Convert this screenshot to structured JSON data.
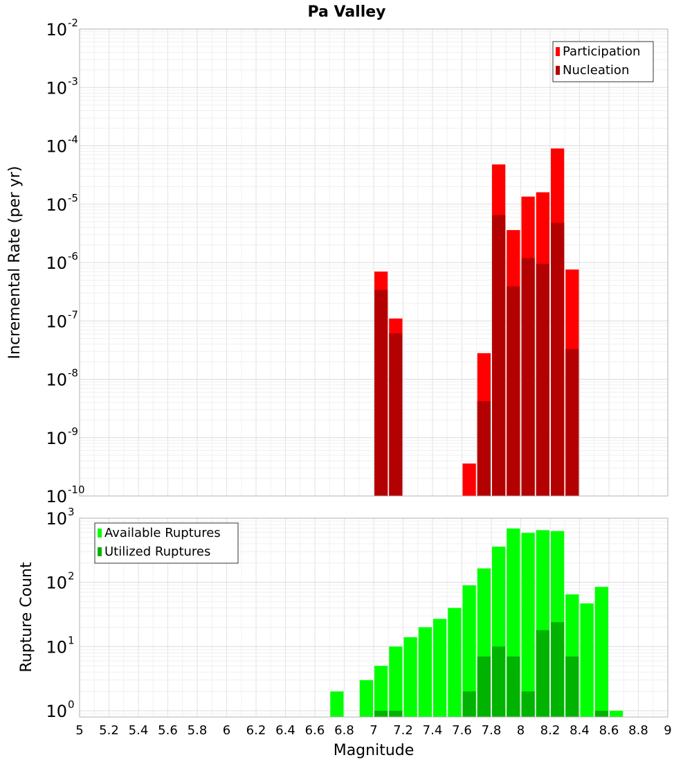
{
  "figure": {
    "title": "Pa Valley",
    "xlabel": "Magnitude",
    "xlim": [
      5,
      9
    ],
    "xticks": [
      5,
      5.2,
      5.4,
      5.6,
      5.8,
      6,
      6.2,
      6.4,
      6.6,
      6.8,
      7,
      7.2,
      7.4,
      7.6,
      7.8,
      8,
      8.2,
      8.4,
      8.6,
      8.8,
      9
    ],
    "grid": true
  },
  "chart_data": [
    {
      "type": "bar",
      "ylabel": "Incremental Rate (per yr)",
      "yscale": "log",
      "ylim": [
        1e-10,
        0.01
      ],
      "yticks": [
        {
          "base": "10",
          "exp": "-10"
        },
        {
          "base": "10",
          "exp": "-9"
        },
        {
          "base": "10",
          "exp": "-8"
        },
        {
          "base": "10",
          "exp": "-7"
        },
        {
          "base": "10",
          "exp": "-6"
        },
        {
          "base": "10",
          "exp": "-5"
        },
        {
          "base": "10",
          "exp": "-4"
        },
        {
          "base": "10",
          "exp": "-3"
        },
        {
          "base": "10",
          "exp": "-2"
        }
      ],
      "legend_position": "top-right",
      "series": [
        {
          "name": "Participation",
          "color": "#ff0000",
          "x": [
            7.05,
            7.15,
            7.65,
            7.75,
            7.85,
            7.95,
            8.05,
            8.15,
            8.25,
            8.35
          ],
          "values": [
            7e-07,
            1.1e-07,
            3.6e-10,
            2.8e-08,
            4.8e-05,
            3.6e-06,
            1.35e-05,
            1.6e-05,
            9e-05,
            7.6e-07
          ]
        },
        {
          "name": "Nucleation",
          "color": "#b30000",
          "x": [
            7.05,
            7.15,
            7.75,
            7.85,
            7.95,
            8.05,
            8.15,
            8.25,
            8.35
          ],
          "values": [
            3.4e-07,
            6.1e-08,
            4.2e-09,
            6.5e-06,
            3.9e-07,
            1.2e-06,
            9.5e-07,
            4.8e-06,
            3.3e-08
          ]
        }
      ]
    },
    {
      "type": "bar",
      "ylabel": "Rupture Count",
      "yscale": "log",
      "ylim": [
        0.8,
        1000
      ],
      "yticks": [
        {
          "base": "10",
          "exp": "0"
        },
        {
          "base": "10",
          "exp": "1"
        },
        {
          "base": "10",
          "exp": "2"
        },
        {
          "base": "10",
          "exp": "3"
        }
      ],
      "legend_position": "top-left",
      "series": [
        {
          "name": "Available Ruptures",
          "color": "#00ff00",
          "x": [
            6.75,
            6.95,
            7.05,
            7.15,
            7.25,
            7.35,
            7.45,
            7.55,
            7.65,
            7.75,
            7.85,
            7.95,
            8.05,
            8.15,
            8.25,
            8.35,
            8.45,
            8.55,
            8.65
          ],
          "values": [
            2,
            3,
            5,
            10,
            14,
            20,
            27,
            40,
            90,
            165,
            360,
            690,
            590,
            650,
            630,
            65,
            47,
            85,
            1
          ]
        },
        {
          "name": "Utilized Ruptures",
          "color": "#00b300",
          "x": [
            7.05,
            7.15,
            7.65,
            7.75,
            7.85,
            7.95,
            8.05,
            8.15,
            8.25,
            8.35,
            8.55
          ],
          "values": [
            1,
            1,
            2,
            7,
            10,
            7,
            2,
            18,
            24,
            7,
            1
          ]
        }
      ]
    }
  ]
}
